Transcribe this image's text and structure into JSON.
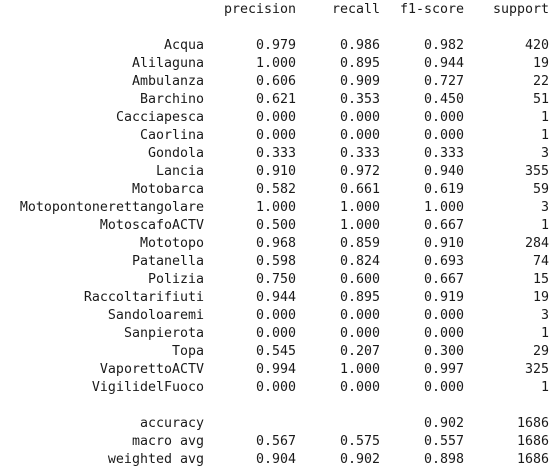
{
  "report": {
    "headers": {
      "precision": "precision",
      "recall": "recall",
      "f1": "f1-score",
      "support": "support"
    },
    "rows": [
      {
        "label": "Acqua",
        "precision": "0.979",
        "recall": "0.986",
        "f1": "0.982",
        "support": "420"
      },
      {
        "label": "Alilaguna",
        "precision": "1.000",
        "recall": "0.895",
        "f1": "0.944",
        "support": "19"
      },
      {
        "label": "Ambulanza",
        "precision": "0.606",
        "recall": "0.909",
        "f1": "0.727",
        "support": "22"
      },
      {
        "label": "Barchino",
        "precision": "0.621",
        "recall": "0.353",
        "f1": "0.450",
        "support": "51"
      },
      {
        "label": "Cacciapesca",
        "precision": "0.000",
        "recall": "0.000",
        "f1": "0.000",
        "support": "1"
      },
      {
        "label": "Caorlina",
        "precision": "0.000",
        "recall": "0.000",
        "f1": "0.000",
        "support": "1"
      },
      {
        "label": "Gondola",
        "precision": "0.333",
        "recall": "0.333",
        "f1": "0.333",
        "support": "3"
      },
      {
        "label": "Lancia",
        "precision": "0.910",
        "recall": "0.972",
        "f1": "0.940",
        "support": "355"
      },
      {
        "label": "Motobarca",
        "precision": "0.582",
        "recall": "0.661",
        "f1": "0.619",
        "support": "59"
      },
      {
        "label": "Motopontonerettangolare",
        "precision": "1.000",
        "recall": "1.000",
        "f1": "1.000",
        "support": "3"
      },
      {
        "label": "MotoscafoACTV",
        "precision": "0.500",
        "recall": "1.000",
        "f1": "0.667",
        "support": "1"
      },
      {
        "label": "Mototopo",
        "precision": "0.968",
        "recall": "0.859",
        "f1": "0.910",
        "support": "284"
      },
      {
        "label": "Patanella",
        "precision": "0.598",
        "recall": "0.824",
        "f1": "0.693",
        "support": "74"
      },
      {
        "label": "Polizia",
        "precision": "0.750",
        "recall": "0.600",
        "f1": "0.667",
        "support": "15"
      },
      {
        "label": "Raccoltarifiuti",
        "precision": "0.944",
        "recall": "0.895",
        "f1": "0.919",
        "support": "19"
      },
      {
        "label": "Sandoloaremi",
        "precision": "0.000",
        "recall": "0.000",
        "f1": "0.000",
        "support": "3"
      },
      {
        "label": "Sanpierota",
        "precision": "0.000",
        "recall": "0.000",
        "f1": "0.000",
        "support": "1"
      },
      {
        "label": "Topa",
        "precision": "0.545",
        "recall": "0.207",
        "f1": "0.300",
        "support": "29"
      },
      {
        "label": "VaporettoACTV",
        "precision": "0.994",
        "recall": "1.000",
        "f1": "0.997",
        "support": "325"
      },
      {
        "label": "VigilidelFuoco",
        "precision": "0.000",
        "recall": "0.000",
        "f1": "0.000",
        "support": "1"
      }
    ],
    "summary": [
      {
        "label": "accuracy",
        "precision": "",
        "recall": "",
        "f1": "0.902",
        "support": "1686"
      },
      {
        "label": "macro avg",
        "precision": "0.567",
        "recall": "0.575",
        "f1": "0.557",
        "support": "1686"
      },
      {
        "label": "weighted avg",
        "precision": "0.904",
        "recall": "0.902",
        "f1": "0.898",
        "support": "1686"
      }
    ]
  }
}
